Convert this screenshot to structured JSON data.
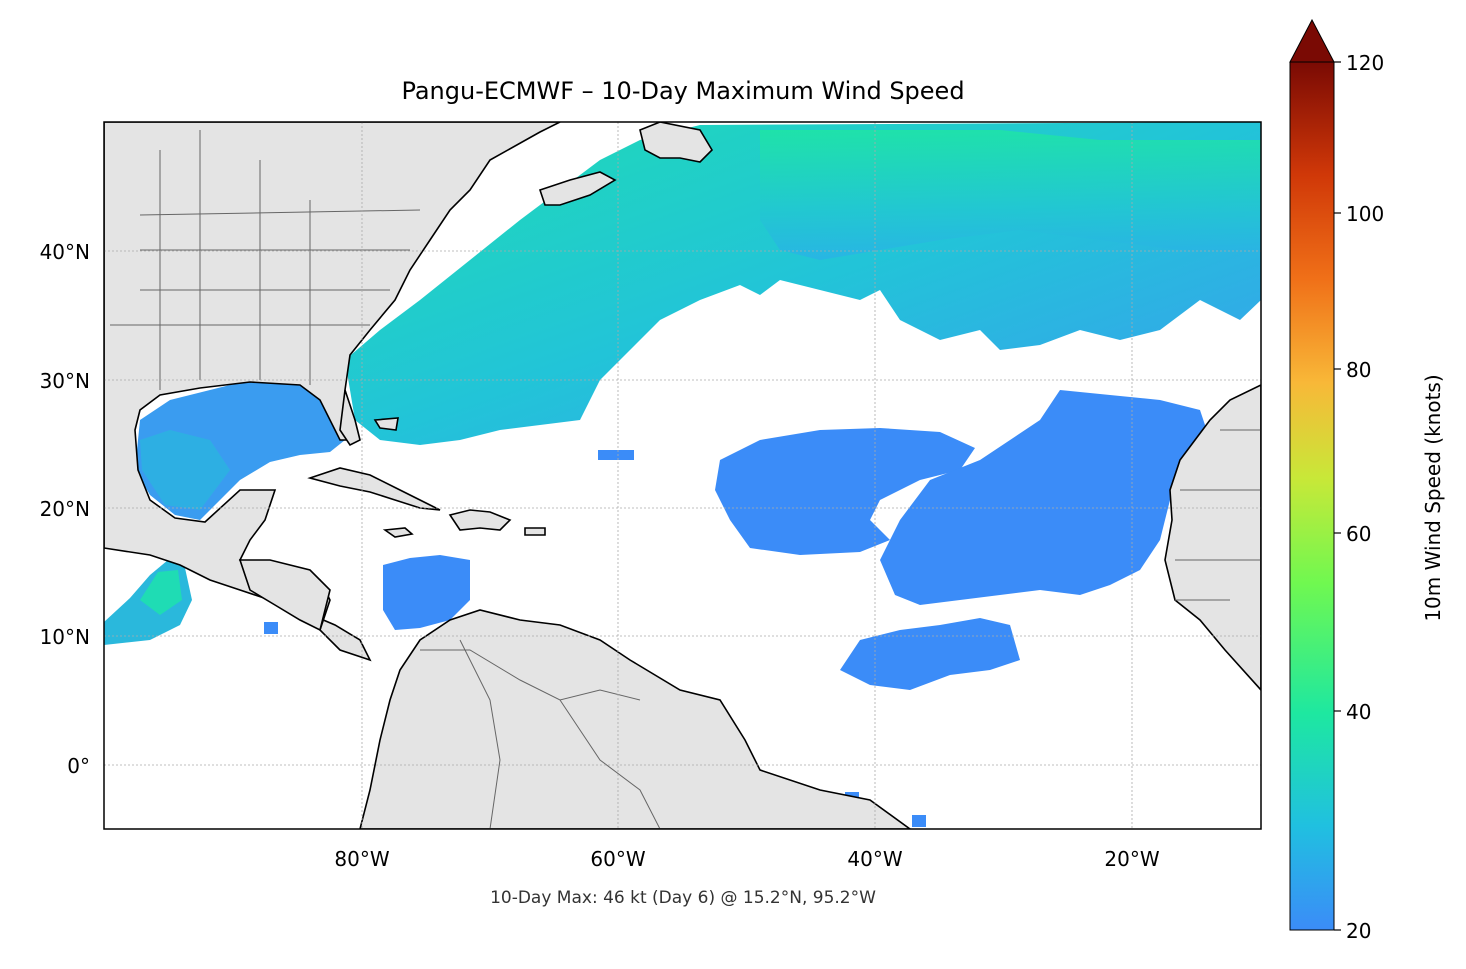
{
  "title": "Pangu-ECMWF – 10-Day Maximum Wind Speed",
  "footnote": "10-Day Max: 46 kt (Day 6) @ 15.2°N, 95.2°W",
  "lat_ticks": [
    "40°N",
    "30°N",
    "20°N",
    "10°N",
    "0°"
  ],
  "lon_ticks": [
    "80°W",
    "60°W",
    "40°W",
    "20°W"
  ],
  "colorbar": {
    "label": "10m Wind Speed (knots)",
    "ticks": [
      "20",
      "40",
      "60",
      "80",
      "100",
      "120"
    ]
  },
  "colors": {
    "land": "#e4e4e4",
    "wind_low": "#3b8cf8",
    "wind_mid": "#1fd4c8",
    "wind_high": "#1ee8a0",
    "coastline": "#000000",
    "borders": "#666666"
  }
}
